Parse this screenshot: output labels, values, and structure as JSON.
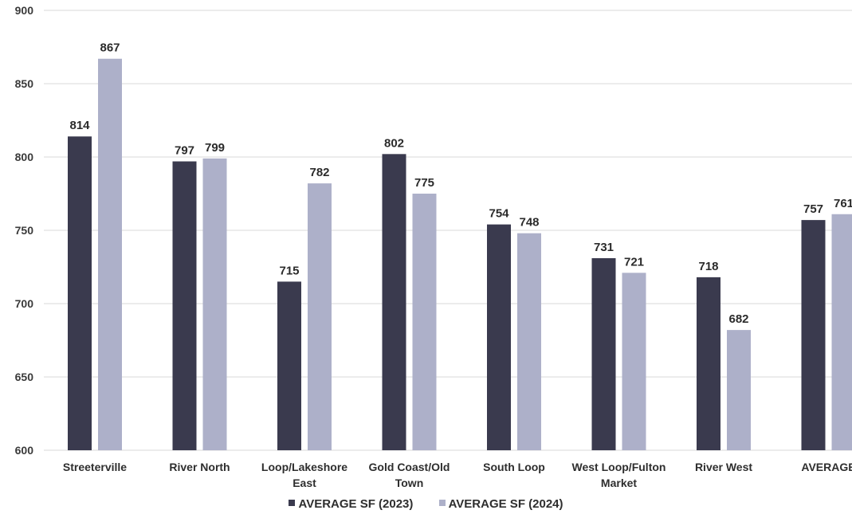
{
  "chart_data": {
    "type": "bar",
    "categories": [
      [
        "Streeterville"
      ],
      [
        "River North"
      ],
      [
        "Loop/Lakeshore",
        "East"
      ],
      [
        "Gold Coast/Old",
        "Town"
      ],
      [
        "South Loop"
      ],
      [
        "West Loop/Fulton",
        "Market"
      ],
      [
        "River West"
      ],
      [
        "AVERAGE"
      ]
    ],
    "series": [
      {
        "name": "AVERAGE SF (2023)",
        "color": "#3a3a4e",
        "values": [
          814,
          797,
          715,
          802,
          754,
          731,
          718,
          757
        ]
      },
      {
        "name": "AVERAGE SF (2024)",
        "color": "#adb0c9",
        "values": [
          867,
          799,
          782,
          775,
          748,
          721,
          682,
          761
        ]
      }
    ],
    "ylim": [
      600,
      900
    ],
    "yticks": [
      600,
      650,
      700,
      750,
      800,
      850,
      900
    ],
    "grid": true,
    "legend_position": "bottom"
  }
}
